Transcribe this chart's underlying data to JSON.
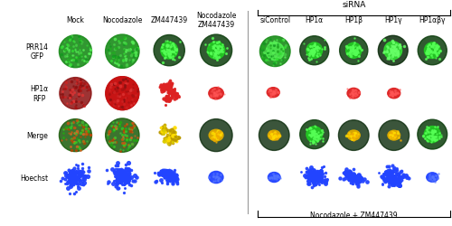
{
  "fig_width": 5.0,
  "fig_height": 2.51,
  "dpi": 100,
  "fig_bg": "#ffffff",
  "left_panel": {
    "col_labels": [
      "Mock",
      "Nocodazole",
      "ZM447439",
      "Nocodazole\nZM447439"
    ],
    "row_labels": [
      "PRR14\nGFP",
      "HP1α\nRFP",
      "Merge",
      "Hoechst"
    ]
  },
  "right_panel": {
    "sirna_label": "siRNA",
    "col_labels": [
      "siControl",
      "HP1α",
      "HP1β",
      "HP1γ",
      "HP1αβγ"
    ],
    "bottom_label": "Nocodazole + ZM447439"
  }
}
